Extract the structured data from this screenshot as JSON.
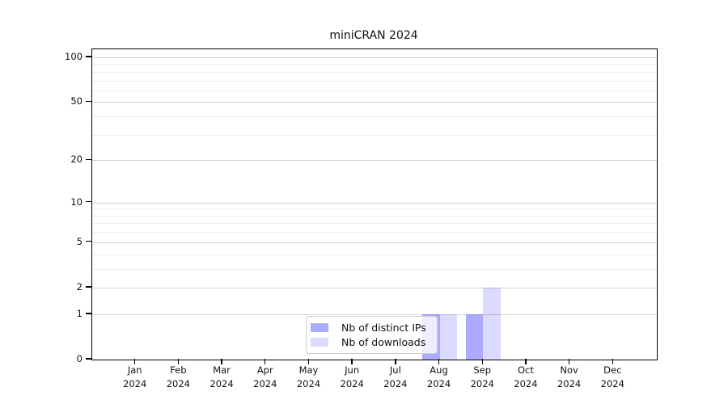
{
  "chart_data": {
    "type": "bar",
    "title": "miniCRAN 2024",
    "categories": [
      "Jan 2024",
      "Feb 2024",
      "Mar 2024",
      "Apr 2024",
      "May 2024",
      "Jun 2024",
      "Jul 2024",
      "Aug 2024",
      "Sep 2024",
      "Oct 2024",
      "Nov 2024",
      "Dec 2024"
    ],
    "x_tick_lines": [
      {
        "month": "Jan",
        "year": "2024"
      },
      {
        "month": "Feb",
        "year": "2024"
      },
      {
        "month": "Mar",
        "year": "2024"
      },
      {
        "month": "Apr",
        "year": "2024"
      },
      {
        "month": "May",
        "year": "2024"
      },
      {
        "month": "Jun",
        "year": "2024"
      },
      {
        "month": "Jul",
        "year": "2024"
      },
      {
        "month": "Aug",
        "year": "2024"
      },
      {
        "month": "Sep",
        "year": "2024"
      },
      {
        "month": "Oct",
        "year": "2024"
      },
      {
        "month": "Nov",
        "year": "2024"
      },
      {
        "month": "Dec",
        "year": "2024"
      }
    ],
    "series": [
      {
        "name": "Nb of distinct IPs",
        "color": "rgba(0,0,255,0.33)",
        "values": [
          0,
          0,
          0,
          0,
          0,
          0,
          0,
          1,
          1,
          0,
          0,
          0
        ]
      },
      {
        "name": "Nb of downloads",
        "color": "rgba(0,0,255,0.14)",
        "values": [
          0,
          0,
          0,
          0,
          0,
          0,
          0,
          1,
          2,
          0,
          0,
          0
        ]
      }
    ],
    "yscale": "log1p",
    "ylim": [
      0,
      110
    ],
    "y_major_ticks": [
      0,
      1,
      2,
      5,
      10,
      20,
      50,
      100
    ],
    "y_minor_gridline_values": [
      3,
      4,
      6,
      7,
      8,
      9,
      30,
      40,
      60,
      70,
      80,
      90
    ],
    "grid": true,
    "legend_position": "lower-center-inside",
    "colors": {
      "bar_distinct_ips_on_white": "#ababff",
      "bar_downloads_on_white": "#dbdbff",
      "grid_major": "#d2d2d2",
      "grid_minor": "#ececec",
      "spine": "#000000",
      "legend_border": "#cccccc"
    }
  }
}
